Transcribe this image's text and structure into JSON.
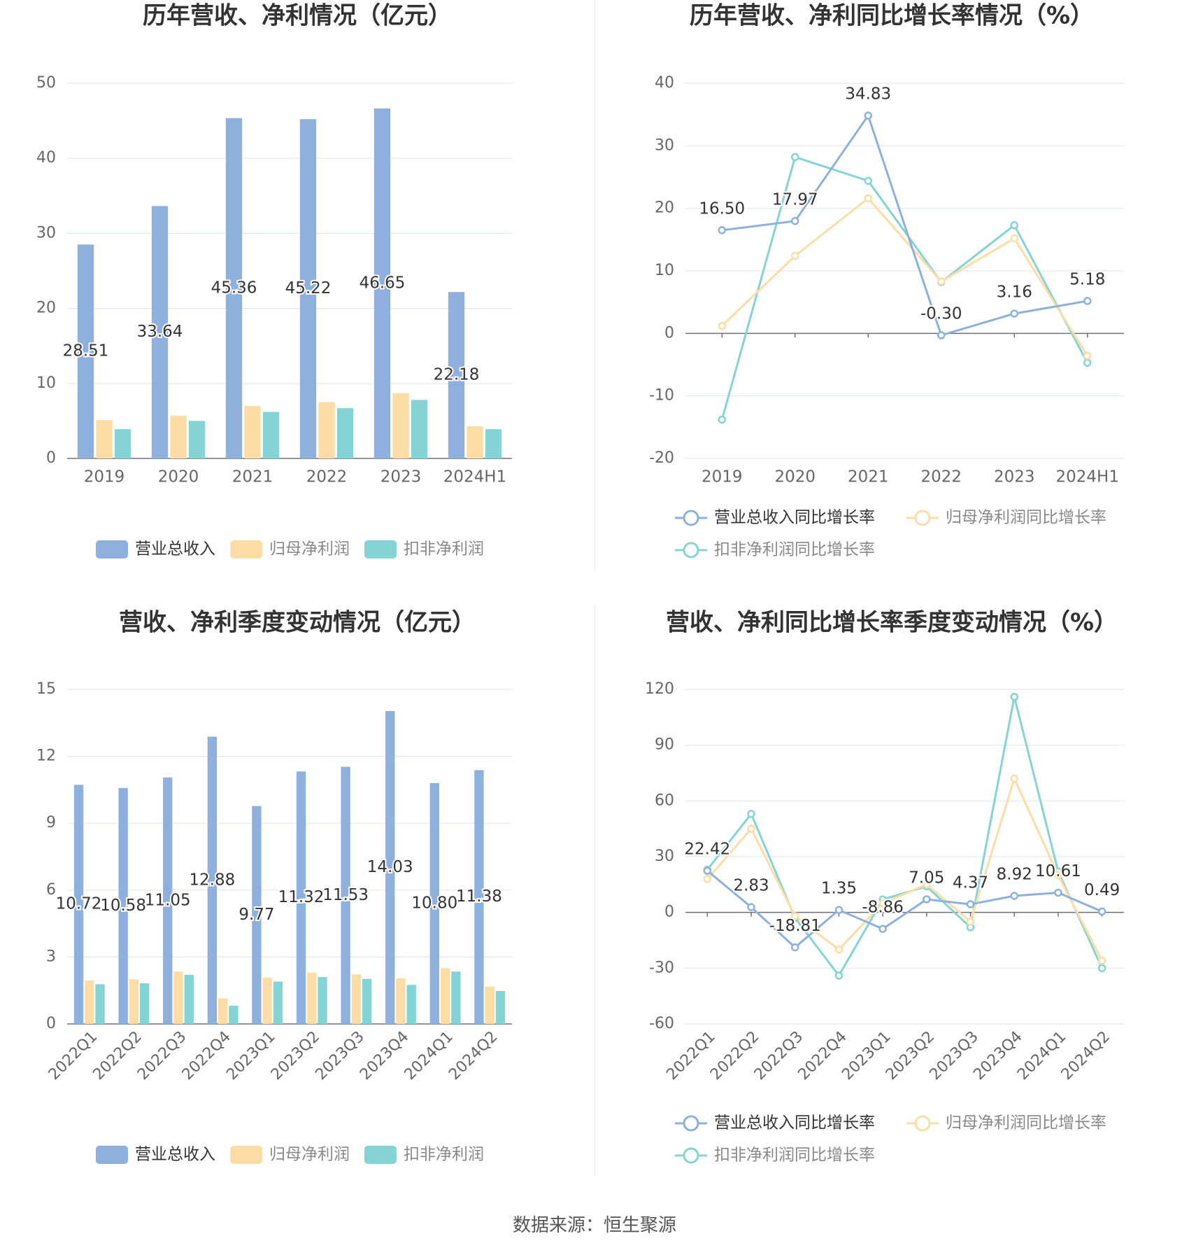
{
  "footer": {
    "source": "数据来源：恒生聚源"
  },
  "colors": {
    "revenue": "#8eb0dc",
    "net_profit": "#fddca6",
    "deducted": "#84d4d5",
    "grid": "#e3e7f0",
    "axis": "#666666",
    "title": "#333333"
  },
  "chart_data": [
    {
      "type": "bar",
      "title": "历年营收、净利情况（亿元）",
      "categories": [
        "2019",
        "2020",
        "2021",
        "2022",
        "2023",
        "2024H1"
      ],
      "ylim": [
        0,
        50
      ],
      "yticks": [
        0,
        10,
        20,
        30,
        40,
        50
      ],
      "grid": true,
      "legend": "bottom",
      "label_series": 0,
      "series": [
        {
          "name": "营业总收入",
          "values": [
            28.51,
            33.64,
            45.36,
            45.22,
            46.65,
            22.18
          ],
          "labels": [
            "28.51",
            "33.64",
            "45.36",
            "45.22",
            "46.65",
            "22.18"
          ]
        },
        {
          "name": "归母净利润",
          "values": [
            5.1,
            5.7,
            7.0,
            7.5,
            8.7,
            4.3
          ]
        },
        {
          "name": "扣非净利润",
          "values": [
            3.9,
            5.0,
            6.2,
            6.7,
            7.8,
            3.9
          ]
        }
      ]
    },
    {
      "type": "line",
      "title": "历年营收、净利同比增长率情况（%）",
      "categories": [
        "2019",
        "2020",
        "2021",
        "2022",
        "2023",
        "2024H1"
      ],
      "ylim": [
        -20,
        40
      ],
      "yticks": [
        -20,
        -10,
        0,
        10,
        20,
        30,
        40
      ],
      "grid": true,
      "legend": "bottom",
      "label_series": 0,
      "series": [
        {
          "name": "营业总收入同比增长率",
          "values": [
            16.5,
            17.97,
            34.83,
            -0.3,
            3.16,
            5.18
          ],
          "labels": [
            "16.50",
            "17.97",
            "34.83",
            "-0.30",
            "3.16",
            "5.18"
          ]
        },
        {
          "name": "归母净利润同比增长率",
          "values": [
            1.2,
            12.4,
            21.6,
            8.3,
            15.2,
            -3.6
          ]
        },
        {
          "name": "扣非净利润同比增长率",
          "values": [
            -13.8,
            28.2,
            24.4,
            8.2,
            17.3,
            -4.7
          ]
        }
      ]
    },
    {
      "type": "bar",
      "title": "营收、净利季度变动情况（亿元）",
      "categories": [
        "2022Q1",
        "2022Q2",
        "2022Q3",
        "2022Q4",
        "2023Q1",
        "2023Q2",
        "2023Q3",
        "2023Q4",
        "2024Q1",
        "2024Q2"
      ],
      "ylim": [
        0,
        15
      ],
      "yticks": [
        0,
        3,
        6,
        9,
        12,
        15
      ],
      "grid": true,
      "legend": "bottom",
      "rotate_labels": true,
      "label_series": 0,
      "series": [
        {
          "name": "营业总收入",
          "values": [
            10.72,
            10.58,
            11.05,
            12.88,
            9.77,
            11.32,
            11.53,
            14.03,
            10.8,
            11.38
          ],
          "labels": [
            "10.72",
            "10.58",
            "11.05",
            "12.88",
            "9.77",
            "11.32",
            "11.53",
            "14.03",
            "10.80",
            "11.38"
          ]
        },
        {
          "name": "归母净利润",
          "values": [
            1.95,
            2.0,
            2.35,
            1.15,
            2.08,
            2.3,
            2.22,
            2.05,
            2.5,
            1.68
          ]
        },
        {
          "name": "扣非净利润",
          "values": [
            1.78,
            1.82,
            2.2,
            0.82,
            1.9,
            2.1,
            2.02,
            1.75,
            2.35,
            1.48
          ]
        }
      ]
    },
    {
      "type": "line",
      "title": "营收、净利同比增长率季度变动情况（%）",
      "categories": [
        "2022Q1",
        "2022Q2",
        "2022Q3",
        "2022Q4",
        "2023Q1",
        "2023Q2",
        "2023Q3",
        "2023Q4",
        "2024Q1",
        "2024Q2"
      ],
      "ylim": [
        -60,
        120
      ],
      "yticks": [
        -60,
        -30,
        0,
        30,
        60,
        90,
        120
      ],
      "grid": true,
      "legend": "bottom",
      "rotate_labels": true,
      "label_series": 0,
      "series": [
        {
          "name": "营业总收入同比增长率",
          "values": [
            22.42,
            2.83,
            -18.81,
            1.35,
            -8.86,
            7.05,
            4.37,
            8.92,
            10.61,
            0.49
          ],
          "labels": [
            "22.42",
            "2.83",
            "-18.81",
            "1.35",
            "-8.86",
            "7.05",
            "4.37",
            "8.92",
            "10.61",
            "0.49"
          ]
        },
        {
          "name": "归母净利润同比增长率",
          "values": [
            18.0,
            45.0,
            -2.0,
            -20.0,
            5.0,
            15.0,
            -5.0,
            72.0,
            20.0,
            -26.0
          ]
        },
        {
          "name": "扣非净利润同比增长率",
          "values": [
            23.0,
            53.0,
            -3.0,
            -34.0,
            7.0,
            14.0,
            -8.0,
            116.0,
            22.0,
            -30.0
          ]
        }
      ]
    }
  ]
}
